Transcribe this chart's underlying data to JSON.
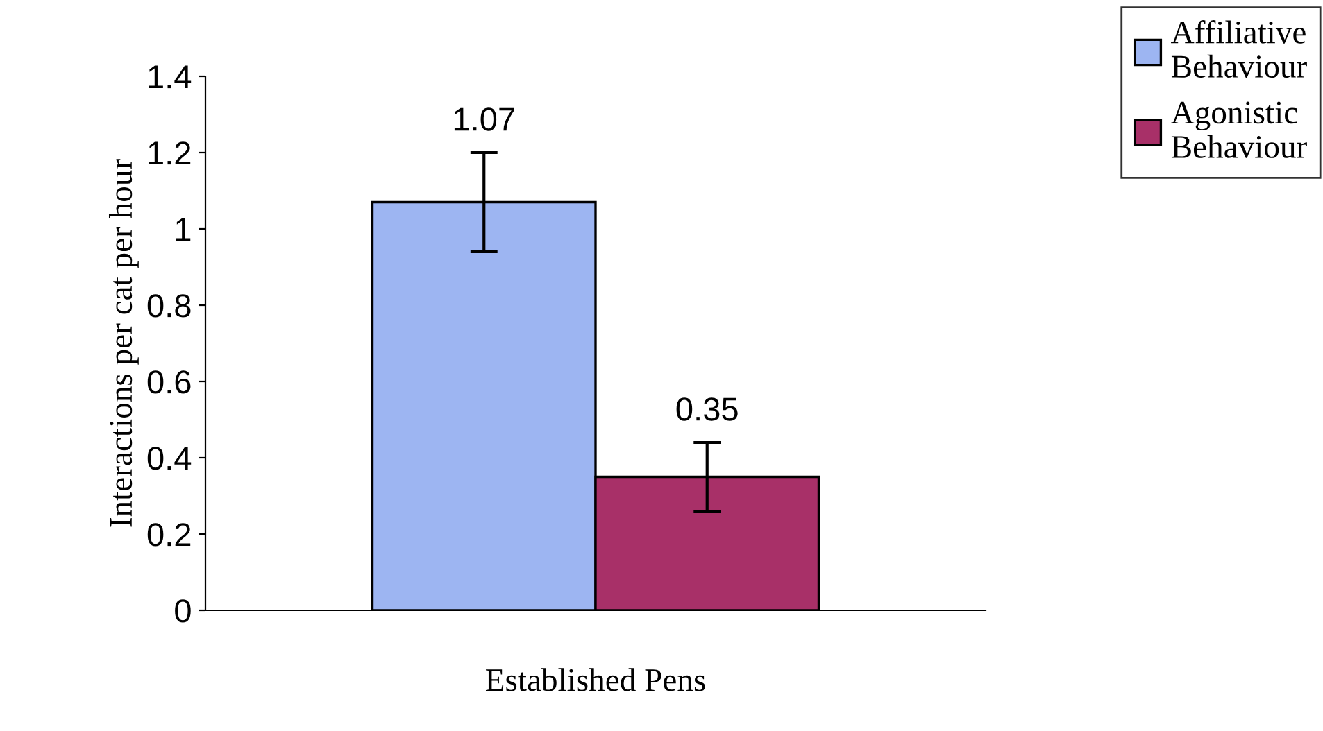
{
  "chart_data": {
    "type": "bar",
    "categories": [
      "Established Pens"
    ],
    "ylabel": "Interactions per cat per hour",
    "series": [
      {
        "name": "Affiliative Behaviour",
        "color": "#9db5f2",
        "values": [
          1.07
        ],
        "errors": [
          0.13
        ]
      },
      {
        "name": "Agonistic Behaviour",
        "color": "#a83068",
        "values": [
          0.35
        ],
        "errors": [
          0.09
        ]
      }
    ],
    "ylim": [
      0,
      1.4
    ],
    "yticks": [
      0,
      0.2,
      0.4,
      0.6,
      0.8,
      1,
      1.2,
      1.4
    ],
    "data_labels": true,
    "grid": false,
    "legend": "top right"
  }
}
